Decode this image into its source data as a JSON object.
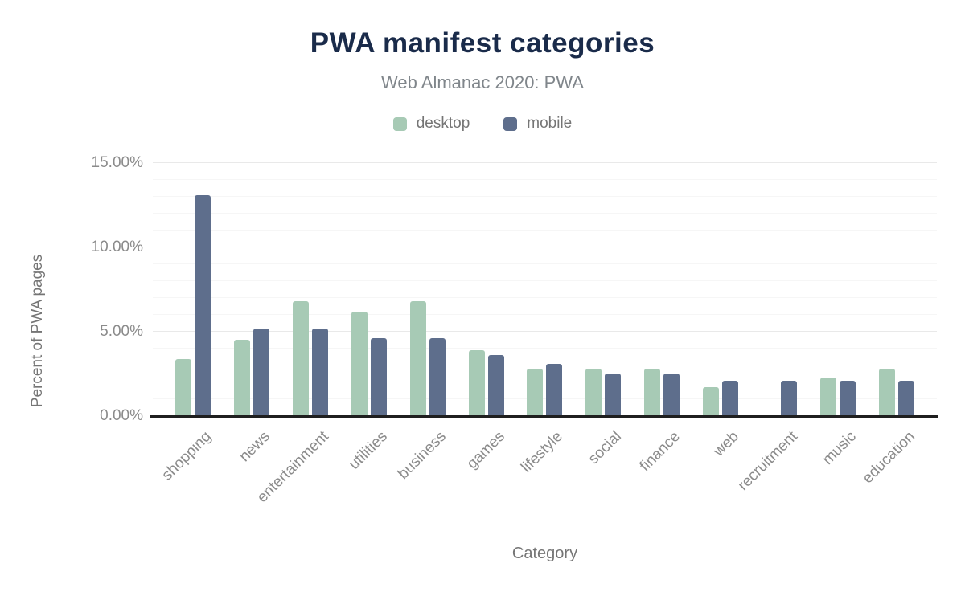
{
  "title": "PWA manifest categories",
  "subtitle": "Web Almanac 2020: PWA",
  "legend": [
    {
      "label": "desktop",
      "color": "#a7cab5"
    },
    {
      "label": "mobile",
      "color": "#5e6e8c"
    }
  ],
  "y_axis": {
    "title": "Percent of PWA pages",
    "ticks": [
      {
        "label": "15.00%",
        "value": 15
      },
      {
        "label": "10.00%",
        "value": 10
      },
      {
        "label": "5.00%",
        "value": 5
      },
      {
        "label": "0.00%",
        "value": 0
      }
    ]
  },
  "x_axis": {
    "title": "Category"
  },
  "colors": {
    "title_text": "#1a2b4a",
    "muted_text": "#757575",
    "tick_text": "#8b8b8b",
    "axis_line": "#1f1f1f",
    "grid_major": "#e9e9e9",
    "grid_minor": "#f6f6f6"
  },
  "chart_data": {
    "type": "bar",
    "title": "PWA manifest categories",
    "subtitle": "Web Almanac 2020: PWA",
    "xlabel": "Category",
    "ylabel": "Percent of PWA pages",
    "ylim": [
      0,
      15
    ],
    "y_major_step": 5,
    "y_minor_step": 1,
    "grid": true,
    "legend_position": "top",
    "categories": [
      "shopping",
      "news",
      "entertainment",
      "utilities",
      "business",
      "games",
      "lifestyle",
      "social",
      "finance",
      "web",
      "recruitment",
      "music",
      "education"
    ],
    "series": [
      {
        "name": "desktop",
        "color": "#a7cab5",
        "values": [
          3.4,
          4.5,
          6.8,
          6.2,
          6.8,
          3.9,
          2.8,
          2.8,
          2.8,
          1.7,
          0,
          2.3,
          2.8
        ]
      },
      {
        "name": "mobile",
        "color": "#5e6e8c",
        "values": [
          13.1,
          5.2,
          5.2,
          4.6,
          4.6,
          3.6,
          3.1,
          2.5,
          2.5,
          2.1,
          2.1,
          2.1,
          2.1
        ]
      }
    ]
  }
}
